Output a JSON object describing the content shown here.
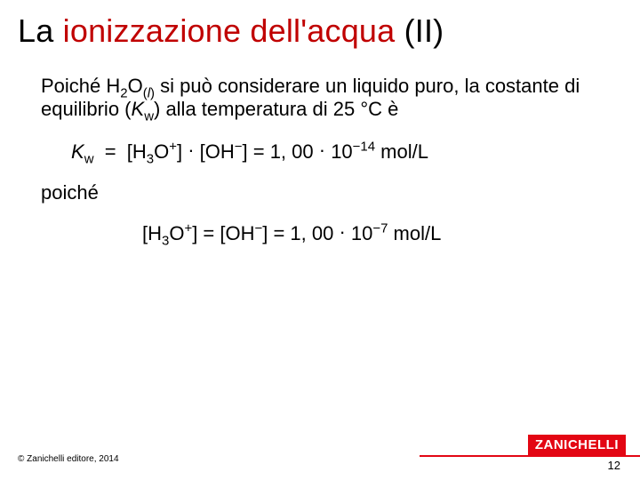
{
  "title": {
    "prefix": "La ",
    "highlight": "ionizzazione dell'acqua",
    "suffix": " (II)"
  },
  "para1_html": "Poiché H<sub>2</sub>O<sub>(<span class='ital'>l</span>)</sub> si può considerare un liquido puro, la costante di equilibrio (<span class='ital'>K</span><sub>w</sub>) alla temperatura di 25 °C è",
  "eq1_html": "<span class='ital'>K</span><sub>w</sub>&nbsp; = &nbsp;[H<sub>3</sub>O<sup>+</sup>] <span class='dot'>·</span> [OH<sup>−</sup>] = 1, 00 <span class='dot'>·</span> 10<sup>−14</sup> mol/L",
  "para2": "poiché",
  "eq2_html": "[H<sub>3</sub>O<sup>+</sup>] = [OH<sup>−</sup>] = 1, 00 <span class='dot'>·</span> 10<sup>−7</sup> mol/L",
  "footer": {
    "copyright": "© Zanichelli editore, 2014",
    "brand": "ZANICHELLI",
    "page": "12"
  },
  "colors": {
    "title_highlight": "#c00000",
    "brand_bg": "#e30613",
    "text": "#000000",
    "background": "#ffffff"
  }
}
